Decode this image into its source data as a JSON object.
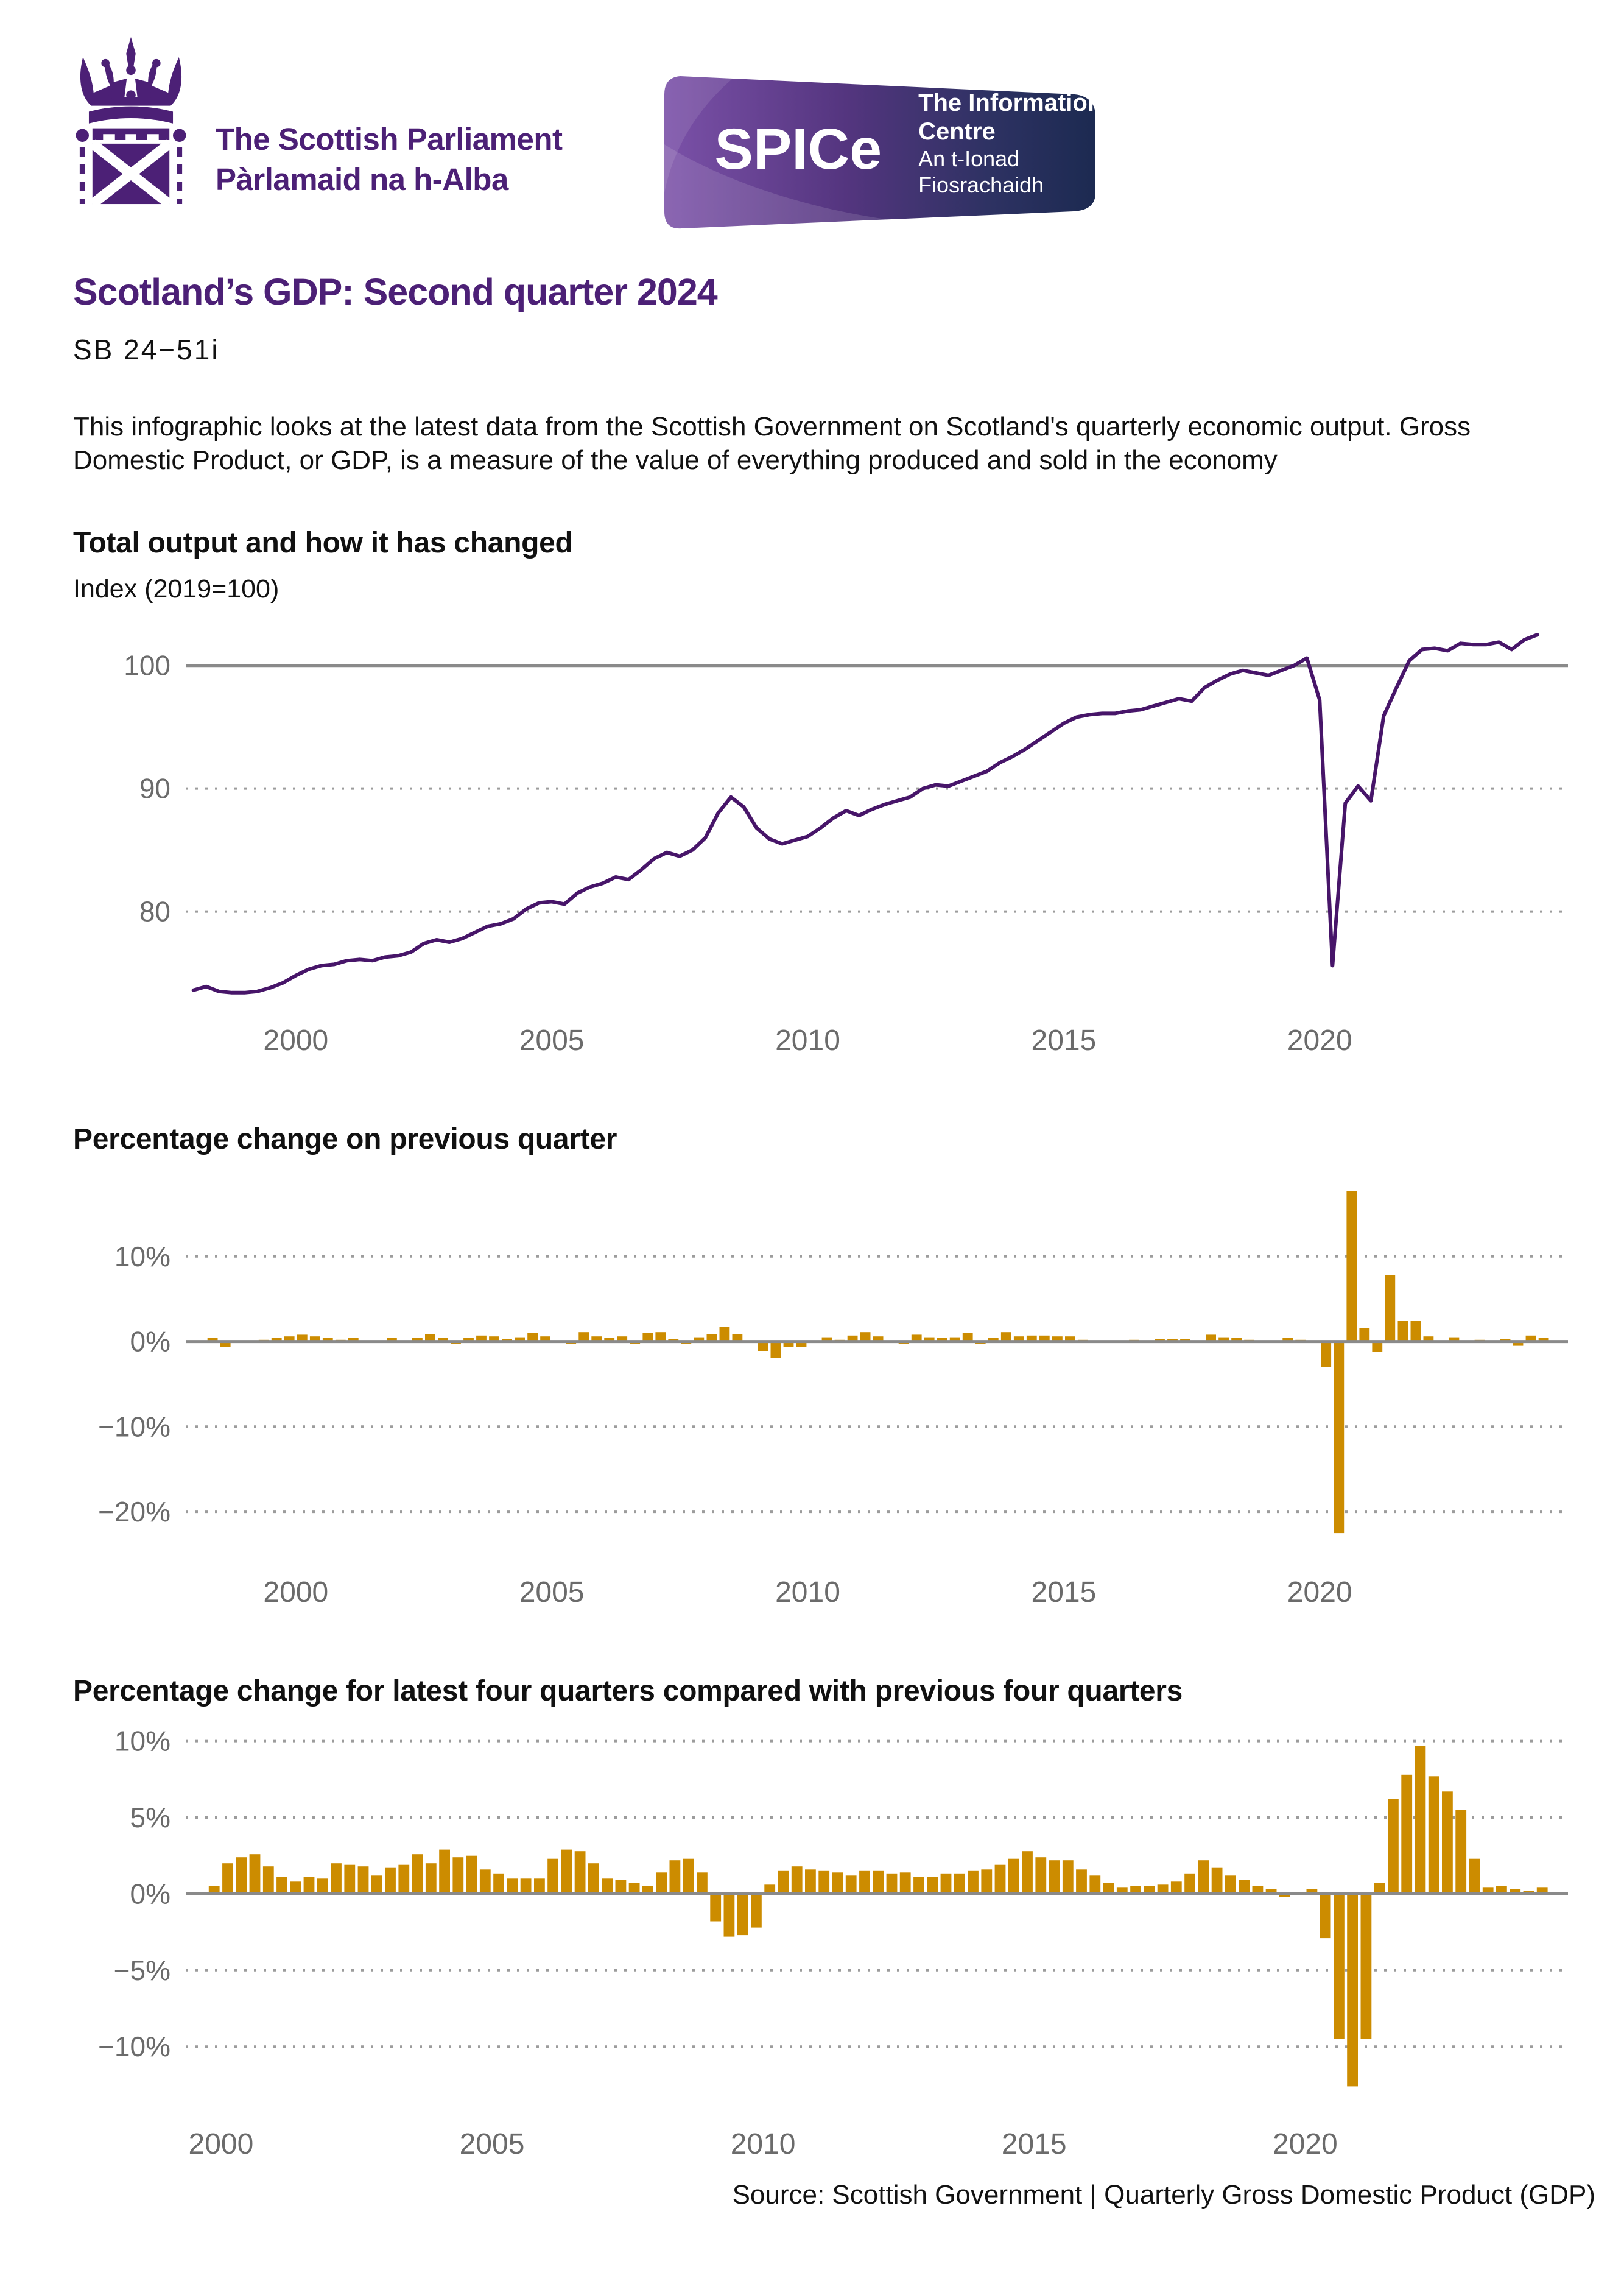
{
  "header": {
    "parliament": {
      "line1": "The Scottish Parliament",
      "line2": "Pàrlamaid na h-Alba"
    },
    "spice": {
      "acronym": "SPICe",
      "line1": "The Information Centre",
      "line2": "An t-Ionad Fiosrachaidh"
    }
  },
  "title": "Scotland’s GDP: Second quarter 2024",
  "report_code": "SB 24−51i",
  "intro": "This infographic looks at the latest data from the Scottish Government on Scotland's quarterly economic output. Gross Domestic Product, or GDP, is a measure of the value of everything produced and sold in the economy",
  "source": "Source: Scottish Government |  Quarterly Gross Domestic Product (GDP)",
  "colors": {
    "brand_purple": "#4C2076",
    "line_purple": "#471569",
    "bar_gold": "#CC8C00",
    "axis_text": "#6B6B6B",
    "grid_gray": "#9C9C9C",
    "zero_line": "#8A8A8A"
  },
  "chart_data": [
    {
      "type": "line",
      "title": "Total output and how it has changed",
      "subtitle": "Index (2019=100)",
      "start_year": 1998,
      "start_quarter": 1,
      "frequency": "quarterly",
      "xlim": [
        1997.85,
        2024.85
      ],
      "ylim": [
        72.6,
        103.4
      ],
      "x_ticks": [
        2000,
        2005,
        2010,
        2015,
        2020
      ],
      "gridlines": [
        {
          "v": 100,
          "label": "100",
          "style": "solid"
        },
        {
          "v": 90,
          "label": "90",
          "style": "dotted"
        },
        {
          "v": 80,
          "label": "80",
          "style": "dotted"
        }
      ],
      "values": [
        73.6,
        73.9,
        73.5,
        73.4,
        73.4,
        73.5,
        73.8,
        74.2,
        74.8,
        75.3,
        75.6,
        75.7,
        76.0,
        76.1,
        76.0,
        76.3,
        76.4,
        76.7,
        77.4,
        77.7,
        77.5,
        77.8,
        78.3,
        78.8,
        79.0,
        79.4,
        80.2,
        80.7,
        80.8,
        80.6,
        81.5,
        82.0,
        82.3,
        82.8,
        82.6,
        83.4,
        84.3,
        84.8,
        84.5,
        85.0,
        86.0,
        88.0,
        89.3,
        88.5,
        86.8,
        85.9,
        85.5,
        85.8,
        86.1,
        86.8,
        87.6,
        88.2,
        87.8,
        88.3,
        88.7,
        89.0,
        89.3,
        90.0,
        90.3,
        90.2,
        90.6,
        91.0,
        91.4,
        92.1,
        92.6,
        93.2,
        93.9,
        94.6,
        95.3,
        95.8,
        96.0,
        96.1,
        96.1,
        96.3,
        96.4,
        96.7,
        97.0,
        97.3,
        97.1,
        98.2,
        98.8,
        99.3,
        99.6,
        99.4,
        99.2,
        99.6,
        100.0,
        100.6,
        97.2,
        75.6,
        88.8,
        90.2,
        89.0,
        95.9,
        98.2,
        100.4,
        101.3,
        101.4,
        101.2,
        101.8,
        101.7,
        101.7,
        101.9,
        101.3,
        102.1,
        102.5
      ]
    },
    {
      "type": "bar",
      "title": "Percentage change on previous quarter",
      "start_year": 1998,
      "start_quarter": 2,
      "frequency": "quarterly",
      "xlim": [
        1997.85,
        2024.85
      ],
      "ylim": [
        -25.0,
        19.5
      ],
      "x_ticks": [
        2000,
        2005,
        2010,
        2015,
        2020
      ],
      "gridlines": [
        {
          "v": 10,
          "label": "10%",
          "style": "dotted"
        },
        {
          "v": 0,
          "label": "0%",
          "style": "solid"
        },
        {
          "v": -10,
          "label": "−10%",
          "style": "dotted"
        },
        {
          "v": -20,
          "label": "−20%",
          "style": "dotted"
        }
      ],
      "values": [
        0.4,
        -0.6,
        -0.1,
        0.0,
        0.2,
        0.4,
        0.6,
        0.8,
        0.6,
        0.4,
        0.2,
        0.4,
        0.1,
        -0.1,
        0.4,
        0.1,
        0.4,
        0.9,
        0.4,
        -0.3,
        0.4,
        0.7,
        0.6,
        0.3,
        0.5,
        1.0,
        0.6,
        0.1,
        -0.3,
        1.1,
        0.6,
        0.4,
        0.6,
        -0.3,
        1.0,
        1.1,
        0.3,
        -0.3,
        0.5,
        0.9,
        1.7,
        0.9,
        0.0,
        -1.1,
        -1.9,
        -0.6,
        -0.6,
        0.0,
        0.5,
        0.2,
        0.7,
        1.1,
        0.6,
        0.0,
        -0.3,
        0.8,
        0.5,
        0.4,
        0.5,
        1.0,
        -0.3,
        0.4,
        1.1,
        0.6,
        0.7,
        0.7,
        0.6,
        0.6,
        0.2,
        0.1,
        0.1,
        0.0,
        0.2,
        0.1,
        0.3,
        0.3,
        0.3,
        -0.1,
        0.8,
        0.5,
        0.4,
        0.2,
        -0.1,
        0.1,
        0.4,
        0.2,
        0.1,
        -3.0,
        -22.5,
        17.7,
        1.6,
        -1.2,
        7.8,
        2.4,
        2.4,
        0.6,
        0.1,
        0.5,
        0.1,
        0.2,
        0.0,
        0.3,
        -0.5,
        0.7,
        0.4
      ]
    },
    {
      "type": "bar",
      "title": "Percentage change for latest four quarters compared with previous four quarters",
      "start_year": 1999,
      "start_quarter": 4,
      "frequency": "quarterly",
      "xlim": [
        1999.35,
        2024.85
      ],
      "ylim": [
        -13.9,
        10.9
      ],
      "x_ticks": [
        2000,
        2005,
        2010,
        2015,
        2020
      ],
      "gridlines": [
        {
          "v": 10,
          "label": "10%",
          "style": "dotted"
        },
        {
          "v": 5,
          "label": "5%",
          "style": "dotted"
        },
        {
          "v": 0,
          "label": "0%",
          "style": "solid"
        },
        {
          "v": -5,
          "label": "−5%",
          "style": "dotted"
        },
        {
          "v": -10,
          "label": "−10%",
          "style": "dotted"
        }
      ],
      "values": [
        0.5,
        2.0,
        2.4,
        2.6,
        1.8,
        1.1,
        0.8,
        1.1,
        1.0,
        2.0,
        1.9,
        1.8,
        1.2,
        1.7,
        1.9,
        2.6,
        2.0,
        2.9,
        2.4,
        2.5,
        1.6,
        1.3,
        1.0,
        1.0,
        1.0,
        2.3,
        2.9,
        2.8,
        2.0,
        1.0,
        0.9,
        0.7,
        0.5,
        1.4,
        2.2,
        2.3,
        1.4,
        -1.8,
        -2.8,
        -2.7,
        -2.2,
        0.6,
        1.5,
        1.8,
        1.6,
        1.5,
        1.4,
        1.2,
        1.5,
        1.5,
        1.3,
        1.4,
        1.1,
        1.1,
        1.3,
        1.3,
        1.5,
        1.6,
        1.9,
        2.3,
        2.8,
        2.4,
        2.2,
        2.2,
        1.6,
        1.2,
        0.7,
        0.4,
        0.5,
        0.5,
        0.6,
        0.8,
        1.3,
        2.2,
        1.7,
        1.2,
        0.9,
        0.5,
        0.3,
        -0.2,
        0.1,
        0.3,
        -2.9,
        -9.5,
        -12.6,
        -9.5,
        0.7,
        6.2,
        7.8,
        9.7,
        7.7,
        6.7,
        5.5,
        2.3,
        0.4,
        0.5,
        0.3,
        0.2,
        0.4
      ]
    }
  ]
}
